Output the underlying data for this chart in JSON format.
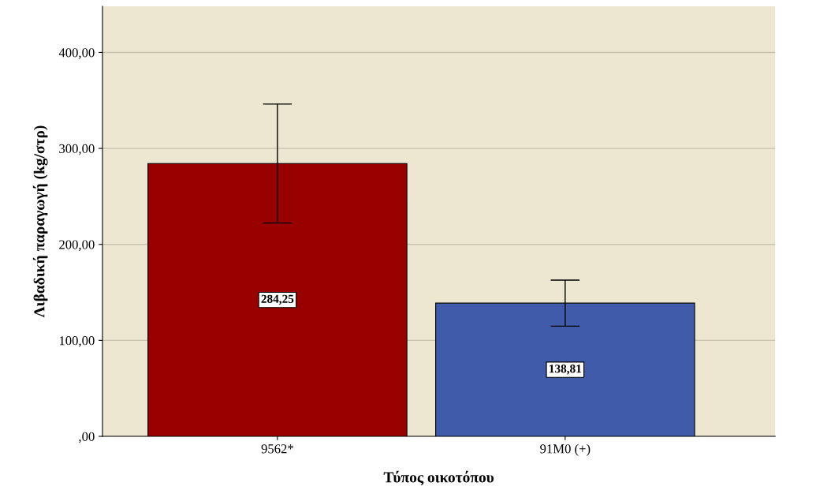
{
  "chart_data": {
    "type": "bar",
    "xlabel": "Τύπος οικοτόπου",
    "ylabel": "Λιβαδική παραγωγή (kg/στρ)",
    "categories": [
      "9562*",
      "91M0 (+)"
    ],
    "values": [
      284.25,
      138.81
    ],
    "colors": [
      "#990000",
      "#3f5ba9"
    ],
    "errors": [
      62,
      24
    ],
    "value_labels": [
      "284,25",
      "138,81"
    ],
    "ylim": [
      0,
      448
    ],
    "yticks": [
      {
        "value": 0,
        "label": ",00"
      },
      {
        "value": 100,
        "label": "100,00"
      },
      {
        "value": 200,
        "label": "200,00"
      },
      {
        "value": 300,
        "label": "300,00"
      },
      {
        "value": 400,
        "label": "400,00"
      }
    ],
    "grid": "y",
    "legend": false
  }
}
